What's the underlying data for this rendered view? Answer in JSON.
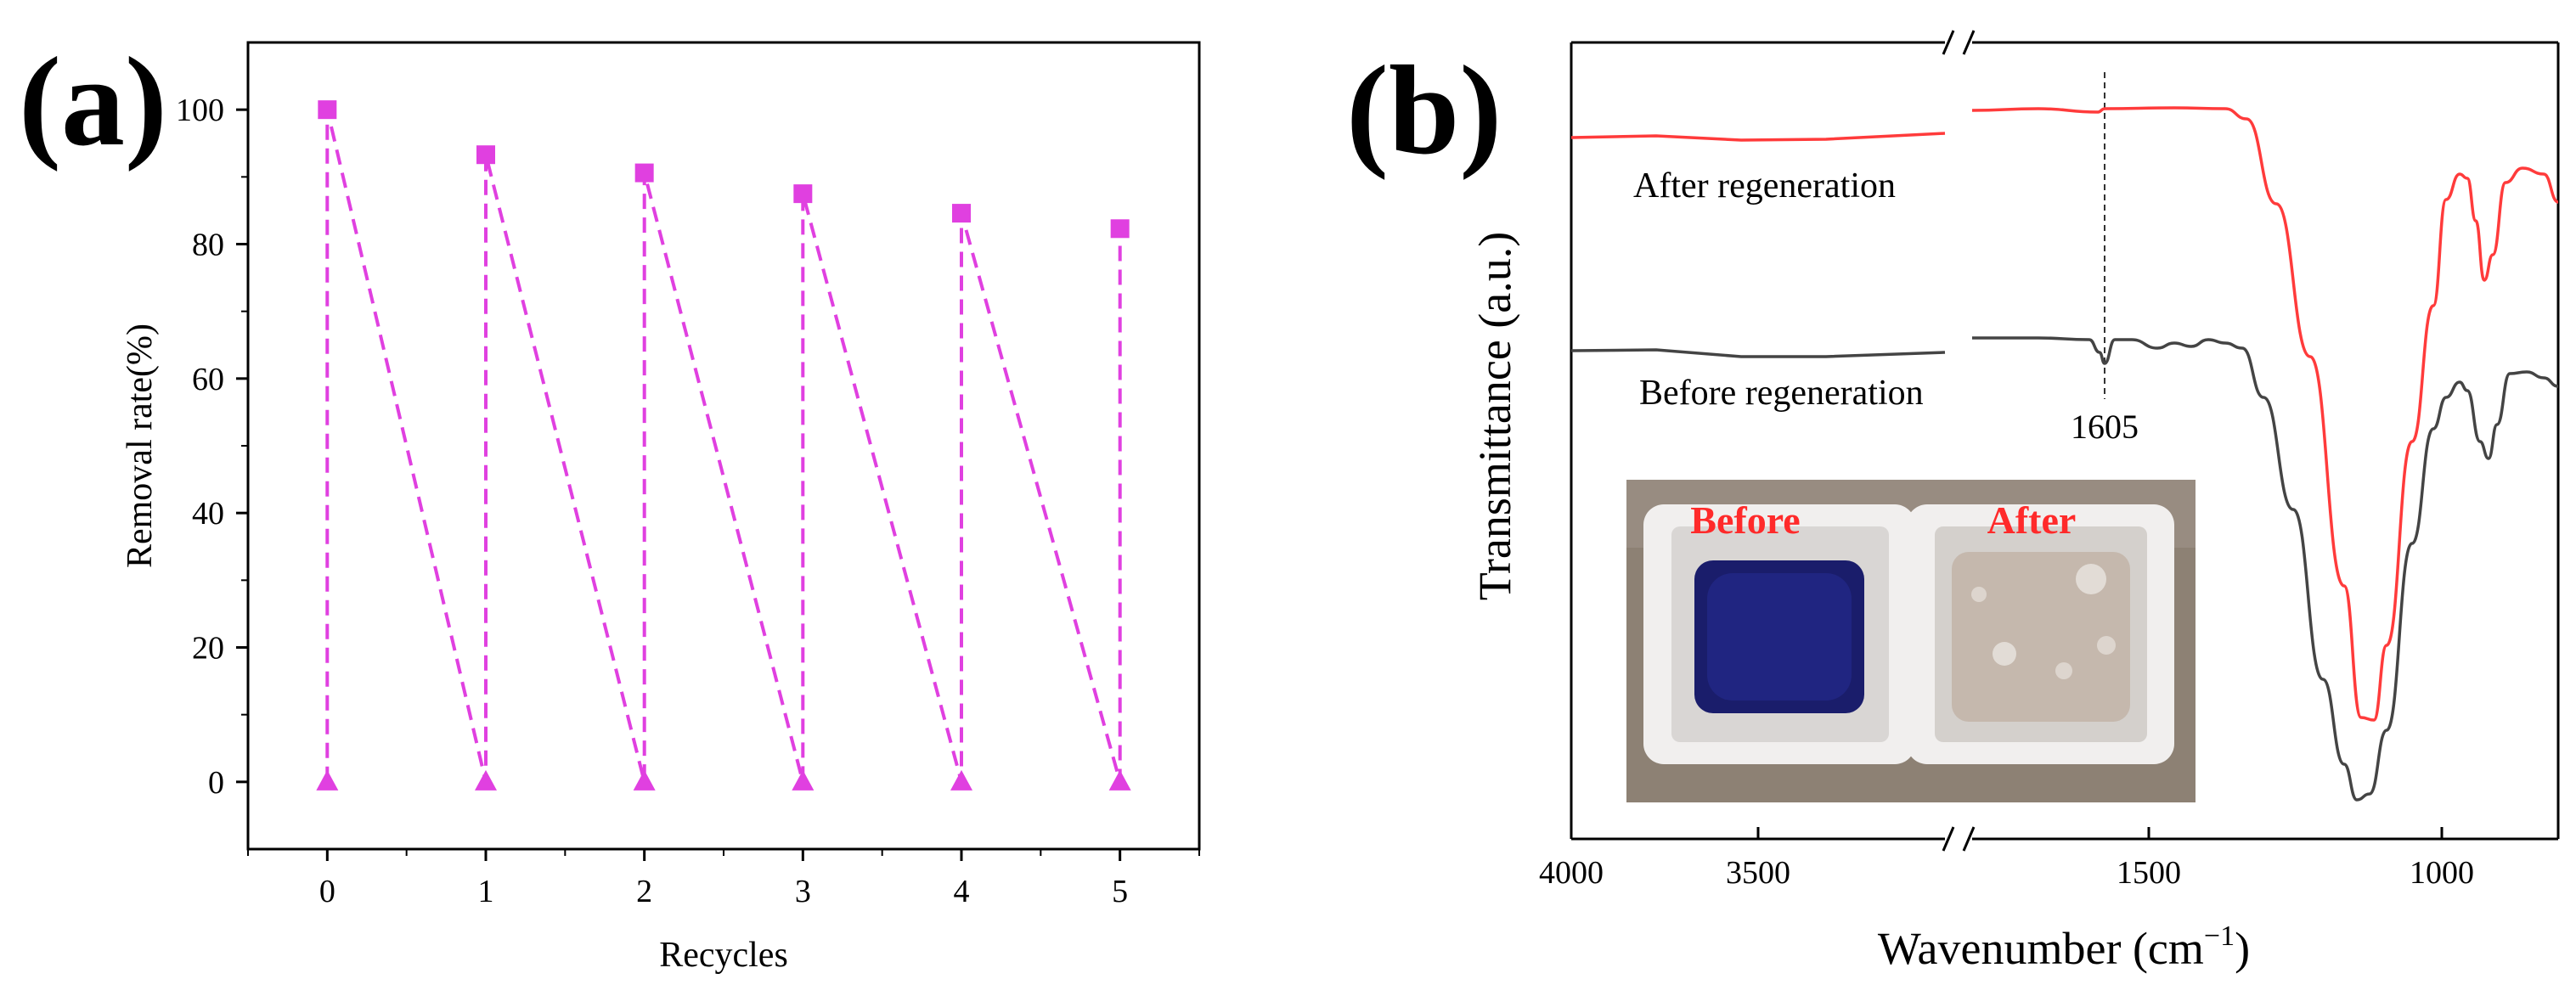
{
  "panel_a_label": "(a)",
  "panel_b_label": "(b)",
  "inset": {
    "before_label": "Before",
    "after_label": "After",
    "label_color": "#ff2a2a"
  },
  "colors": {
    "magenta": "#e040e0",
    "after_line": "#ff3b3b",
    "before_line": "#444444"
  },
  "chart_data": [
    {
      "type": "line",
      "xlabel": "Recycles",
      "ylabel": "Removal rate(%)",
      "xlim": [
        -0.5,
        5.5
      ],
      "ylim": [
        -10,
        110
      ],
      "x_ticks": [
        "0",
        "1",
        "2",
        "3",
        "4",
        "5"
      ],
      "y_ticks": [
        "0",
        "20",
        "40",
        "60",
        "80",
        "100"
      ],
      "series": [
        {
          "marker": "square",
          "x": [
            0,
            1,
            2,
            3,
            4,
            5
          ],
          "values": [
            100,
            93.3,
            90.6,
            87.5,
            84.6,
            82.3
          ]
        },
        {
          "marker": "triangle",
          "x": [
            0,
            1,
            2,
            3,
            4,
            5
          ],
          "values": [
            0,
            0,
            0,
            0,
            0,
            0
          ]
        }
      ],
      "line_style": "dashed",
      "grid": false
    },
    {
      "type": "line",
      "xlabel": "Wavenumber (cm",
      "xlabel_sup": "−1",
      "xlabel_close": ")",
      "ylabel": "Transmittance (a.u.)",
      "x_ticks": [
        "4000",
        "3500",
        "1500",
        "1000"
      ],
      "axis_break": [
        3200,
        1800
      ],
      "annotation": "1605",
      "series": [
        {
          "name": "After regeneration"
        },
        {
          "name": "Before regeneration"
        }
      ],
      "grid": false
    }
  ]
}
